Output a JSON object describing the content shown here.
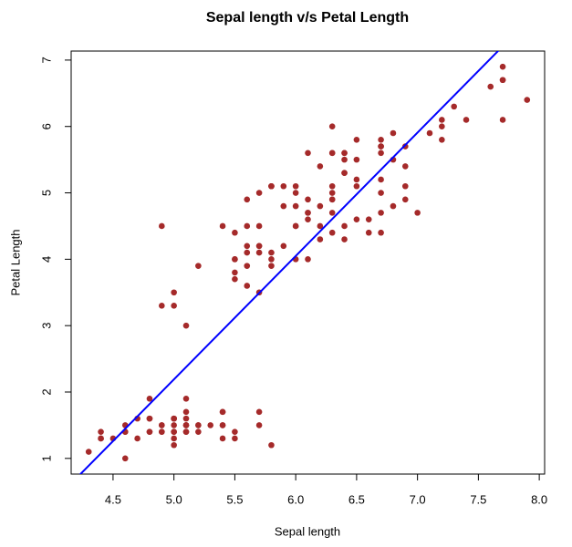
{
  "chart_data": {
    "type": "scatter",
    "title": "Sepal length v/s Petal Length",
    "x_label": "Sepal length",
    "y_label": "Petal Length",
    "xlim": [
      4.156,
      8.044
    ],
    "ylim": [
      0.764,
      7.136
    ],
    "xticks": [
      4.5,
      {
        "value": 5,
        "label": "5.0"
      },
      5.5,
      {
        "value": 6,
        "label": "6.0"
      },
      6.5,
      {
        "value": 7,
        "label": "7.0"
      },
      7.5,
      {
        "value": 8,
        "label": "8.0"
      }
    ],
    "yticks": [
      1,
      2,
      3,
      4,
      5,
      6,
      7
    ],
    "series": [
      {
        "color": "#a52a2a",
        "x": [
          5.1,
          4.9,
          4.7,
          4.6,
          5.0,
          5.4,
          4.6,
          5.0,
          4.4,
          4.9,
          5.4,
          4.8,
          4.8,
          4.3,
          5.8,
          5.7,
          5.4,
          5.1,
          5.7,
          5.1,
          5.4,
          5.1,
          4.6,
          5.1,
          4.8,
          5.0,
          5.0,
          5.2,
          5.2,
          4.7,
          4.8,
          5.4,
          5.2,
          5.5,
          4.9,
          5.0,
          5.5,
          4.9,
          4.4,
          5.1,
          5.0,
          4.5,
          4.4,
          5.0,
          5.1,
          4.8,
          5.1,
          4.6,
          5.3,
          5.0,
          7.0,
          6.4,
          6.9,
          5.5,
          6.5,
          5.7,
          6.3,
          4.9,
          6.6,
          5.2,
          5.0,
          5.9,
          6.0,
          6.1,
          5.6,
          6.7,
          5.6,
          5.8,
          6.2,
          5.6,
          5.9,
          6.1,
          6.3,
          6.1,
          6.4,
          6.6,
          6.8,
          6.7,
          6.0,
          5.7,
          5.5,
          5.5,
          5.8,
          6.0,
          5.4,
          6.0,
          6.7,
          6.3,
          5.6,
          5.5,
          5.5,
          6.1,
          5.8,
          5.0,
          5.6,
          5.7,
          5.7,
          6.2,
          5.1,
          5.7,
          6.3,
          5.8,
          7.1,
          6.3,
          6.5,
          7.6,
          4.9,
          7.3,
          6.7,
          7.2,
          6.5,
          6.4,
          6.8,
          5.7,
          5.8,
          6.4,
          6.5,
          7.7,
          7.7,
          6.0,
          6.9,
          5.6,
          7.7,
          6.3,
          6.7,
          7.2,
          6.2,
          6.1,
          6.4,
          7.2,
          7.4,
          7.9,
          6.4,
          6.3,
          6.1,
          7.7,
          6.3,
          6.4,
          6.0,
          6.9,
          6.7,
          6.9,
          5.8,
          6.8,
          6.7,
          6.7,
          6.3,
          6.5,
          6.2,
          5.9
        ],
        "values": [
          1.4,
          1.4,
          1.3,
          1.5,
          1.4,
          1.7,
          1.4,
          1.5,
          1.4,
          1.5,
          1.5,
          1.6,
          1.4,
          1.1,
          1.2,
          1.5,
          1.3,
          1.4,
          1.7,
          1.5,
          1.7,
          1.5,
          1.0,
          1.7,
          1.9,
          1.6,
          1.6,
          1.5,
          1.4,
          1.6,
          1.6,
          1.5,
          1.5,
          1.4,
          1.5,
          1.2,
          1.3,
          1.4,
          1.3,
          1.5,
          1.3,
          1.3,
          1.3,
          1.6,
          1.9,
          1.4,
          1.6,
          1.4,
          1.5,
          1.4,
          4.7,
          4.5,
          4.9,
          4.0,
          4.6,
          4.5,
          4.7,
          3.3,
          4.6,
          3.9,
          3.5,
          4.2,
          4.0,
          4.7,
          3.6,
          4.4,
          4.5,
          4.1,
          4.5,
          3.9,
          4.8,
          4.0,
          4.9,
          4.7,
          4.3,
          4.4,
          4.8,
          5.0,
          4.5,
          3.5,
          3.8,
          3.7,
          3.9,
          5.1,
          4.5,
          4.5,
          4.7,
          4.4,
          4.1,
          4.0,
          4.4,
          4.6,
          4.0,
          3.3,
          4.2,
          4.2,
          4.2,
          4.3,
          3.0,
          4.1,
          6.0,
          5.1,
          5.9,
          5.6,
          5.8,
          6.6,
          4.5,
          6.3,
          5.8,
          6.1,
          5.1,
          5.3,
          5.5,
          5.0,
          5.1,
          5.3,
          5.5,
          6.7,
          6.9,
          5.0,
          5.7,
          4.9,
          6.7,
          4.9,
          5.7,
          6.0,
          4.8,
          4.9,
          5.6,
          5.8,
          6.1,
          6.4,
          5.6,
          5.1,
          5.6,
          6.1,
          5.6,
          5.5,
          4.8,
          5.4,
          5.6,
          5.1,
          5.1,
          5.9,
          5.7,
          5.2,
          5.0,
          5.2,
          5.4,
          5.1
        ]
      }
    ],
    "fit": {
      "color": "#0000ff",
      "intercept": -7.1014,
      "slope": 1.8584
    }
  }
}
